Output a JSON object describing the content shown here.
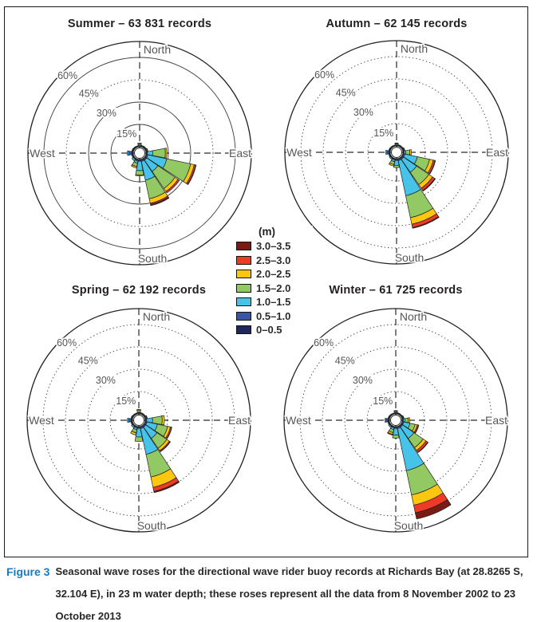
{
  "figure_panel": {
    "border_color": "#1a1a1a",
    "background": "#ffffff"
  },
  "legend": {
    "title": "(m)",
    "entries": [
      {
        "label": "3.0–3.5",
        "color": "#7a1a15"
      },
      {
        "label": "2.5–3.0",
        "color": "#ee3a26"
      },
      {
        "label": "2.0–2.5",
        "color": "#fdc70f"
      },
      {
        "label": "1.5–2.0",
        "color": "#93c963"
      },
      {
        "label": "1.0–1.5",
        "color": "#47c2e8"
      },
      {
        "label": "0.5–1.0",
        "color": "#3a55a5"
      },
      {
        "label": "0–0.5",
        "color": "#20265e"
      }
    ]
  },
  "chart_data": {
    "type": "wind-rose",
    "kind": "polar stacked directional histogram (seasonal wave roses)",
    "units": "percent of records per direction bin",
    "bin_width_deg": 22.5,
    "direction_bins": [
      "N",
      "NNE",
      "NE",
      "ENE",
      "E",
      "ESE",
      "SE",
      "SSE",
      "S",
      "SSW",
      "SW",
      "WSW",
      "W",
      "WNW",
      "NW",
      "NNW"
    ],
    "radial_ticks_pct": [
      15,
      30,
      45,
      60
    ],
    "radial_tick_suffix": "%",
    "compass_labels": {
      "n": "North",
      "e": "East",
      "s": "South",
      "w": "West"
    },
    "wave_height_classes_m": [
      "0–0.5",
      "0.5–1.0",
      "1.0–1.5",
      "1.5–2.0",
      "2.0–2.5",
      "2.5–3.0",
      "3.0–3.5"
    ],
    "class_colors": [
      "#20265e",
      "#3a55a5",
      "#47c2e8",
      "#93c963",
      "#fdc70f",
      "#ee3a26",
      "#7a1a15"
    ],
    "panels": [
      {
        "id": "summer",
        "title": "Summer – 63 831 records",
        "records": "63 831",
        "solid_rings": [
          15,
          30,
          60
        ],
        "petals_pct": {
          "N": [
            0.3,
            0.4,
            0.6,
            0.9,
            0.3,
            0,
            0
          ],
          "NNE": [
            0.3,
            0.3,
            0.5,
            0,
            0,
            0,
            0
          ],
          "NE": [
            0.3,
            0.3,
            0.5,
            0,
            0,
            0,
            0
          ],
          "ENE": [
            0.3,
            0.3,
            0.6,
            0.3,
            0,
            0,
            0
          ],
          "E": [
            0.3,
            0.7,
            3.5,
            8.5,
            1.0,
            0,
            0
          ],
          "ESE": [
            0.4,
            1.0,
            12.9,
            16.4,
            2.5,
            1.0,
            0.3
          ],
          "SE": [
            0.4,
            1.0,
            9.2,
            13.9,
            2.5,
            1.1,
            0
          ],
          "SSE": [
            0.4,
            1.0,
            12.9,
            12.8,
            3.1,
            0.8,
            0.8
          ],
          "S": [
            0.4,
            0.8,
            6.3,
            3.0,
            0.5,
            0,
            0
          ],
          "SSW": [
            0.4,
            0.8,
            1.4,
            2.4,
            1.0,
            0,
            0
          ],
          "SW": [
            0.3,
            0.5,
            1.2,
            0,
            0,
            0,
            0
          ],
          "WSW": [
            0.3,
            0.4,
            0.5,
            0,
            0,
            0,
            0
          ],
          "W": [
            1.0,
            2.0,
            1.0,
            0,
            0,
            0,
            0
          ],
          "WNW": [
            0.3,
            0.4,
            0.5,
            0,
            0,
            0,
            0
          ],
          "NW": [
            0.3,
            0.3,
            0.4,
            0,
            0,
            0,
            0
          ],
          "NNW": [
            0.2,
            0.3,
            0.3,
            0,
            0,
            0,
            0
          ]
        }
      },
      {
        "id": "autumn",
        "title": "Autumn – 62 145 records",
        "records": "62 145",
        "solid_rings": [],
        "petals_pct": {
          "N": [
            0.3,
            0.4,
            0.6,
            0.5,
            0.2,
            0,
            0
          ],
          "NNE": [
            0.2,
            0.3,
            0.4,
            0,
            0,
            0,
            0
          ],
          "NE": [
            0.2,
            0.3,
            0.4,
            0,
            0,
            0,
            0
          ],
          "ENE": [
            0.3,
            0.3,
            0.5,
            0.3,
            0,
            0,
            0
          ],
          "E": [
            0.3,
            0.5,
            1.2,
            2.7,
            1.0,
            0,
            0
          ],
          "ESE": [
            0.4,
            1.0,
            8.6,
            8.4,
            2.5,
            1.2,
            0.3
          ],
          "SE": [
            0.4,
            1.0,
            10.6,
            10.0,
            3.0,
            1.8,
            0.5
          ],
          "SSE": [
            0.4,
            1.0,
            24.1,
            15.1,
            4.5,
            2.3,
            0.5
          ],
          "S": [
            0.4,
            0.8,
            3.3,
            1.5,
            0,
            0,
            0
          ],
          "SSW": [
            0.3,
            0.7,
            1.2,
            2.0,
            1.0,
            0,
            0
          ],
          "SW": [
            0.3,
            0.4,
            0.8,
            0,
            0,
            0,
            0
          ],
          "WSW": [
            0.3,
            0.4,
            0.5,
            0,
            0,
            0,
            0
          ],
          "W": [
            0.8,
            1.4,
            0.8,
            0,
            0,
            0,
            0
          ],
          "WNW": [
            0.3,
            0.4,
            0.4,
            0,
            0,
            0,
            0
          ],
          "NW": [
            0.2,
            0.3,
            0.4,
            0,
            0,
            0,
            0
          ],
          "NNW": [
            0.2,
            0.2,
            0.3,
            0,
            0,
            0,
            0
          ]
        }
      },
      {
        "id": "spring",
        "title": "Spring – 62 192 records",
        "records": "62 192",
        "solid_rings": [],
        "petals_pct": {
          "N": [
            0.3,
            0.4,
            0.5,
            1.2,
            0.6,
            0,
            0
          ],
          "NNE": [
            0.2,
            0.3,
            0.5,
            0,
            0,
            0,
            0
          ],
          "NE": [
            0.2,
            0.3,
            0.5,
            0,
            0,
            0,
            0
          ],
          "ENE": [
            0.3,
            0.3,
            0.6,
            0.4,
            0,
            0,
            0
          ],
          "E": [
            0.3,
            0.7,
            4.0,
            6.4,
            1.5,
            0,
            0
          ],
          "ESE": [
            0.4,
            0.9,
            7.2,
            7.0,
            1.9,
            0.8,
            0.2
          ],
          "SE": [
            0.4,
            0.9,
            9.2,
            8.0,
            2.0,
            0.7,
            0.2
          ],
          "SSE": [
            0.4,
            1.0,
            17.7,
            15.6,
            7.1,
            2.8,
            0.8
          ],
          "S": [
            0.4,
            0.8,
            5.8,
            3.0,
            0,
            0,
            0
          ],
          "SSW": [
            0.3,
            0.7,
            1.2,
            2.2,
            1.5,
            0,
            0
          ],
          "SW": [
            0.3,
            0.5,
            1.0,
            0,
            0,
            0,
            0
          ],
          "WSW": [
            0.3,
            0.4,
            0.5,
            0,
            0,
            0,
            0
          ],
          "W": [
            0.9,
            1.6,
            0.9,
            0,
            0,
            0,
            0
          ],
          "WNW": [
            0.3,
            0.4,
            0.5,
            0,
            0,
            0,
            0
          ],
          "NW": [
            0.2,
            0.3,
            0.4,
            0,
            0,
            0,
            0
          ],
          "NNW": [
            0.2,
            0.3,
            0.3,
            0,
            0,
            0,
            0
          ]
        }
      },
      {
        "id": "winter",
        "title": "Winter – 61 725 records",
        "records": "61 725",
        "solid_rings": [],
        "petals_pct": {
          "N": [
            0.3,
            0.4,
            0.5,
            0.8,
            0.3,
            0,
            0
          ],
          "NNE": [
            0.2,
            0.3,
            0.4,
            0,
            0,
            0,
            0
          ],
          "NE": [
            0.2,
            0.3,
            0.4,
            0,
            0,
            0,
            0
          ],
          "ENE": [
            0.3,
            0.3,
            0.5,
            0.3,
            0,
            0,
            0
          ],
          "E": [
            0.3,
            0.5,
            1.3,
            2.0,
            1.0,
            0,
            0
          ],
          "ESE": [
            0.4,
            0.8,
            4.3,
            3.5,
            1.5,
            0.8,
            0.2
          ],
          "SE": [
            0.4,
            0.9,
            9.2,
            7.5,
            2.3,
            1.5,
            0.3
          ],
          "SSE": [
            0.4,
            1.0,
            28.9,
            16.7,
            7.0,
            5.3,
            4.2
          ],
          "S": [
            0.4,
            0.8,
            4.5,
            2.0,
            0,
            0,
            0
          ],
          "SSW": [
            0.3,
            0.7,
            1.2,
            2.0,
            1.2,
            0.6,
            0
          ],
          "SW": [
            0.3,
            0.5,
            0.8,
            0,
            0,
            0,
            0
          ],
          "WSW": [
            0.3,
            0.4,
            0.5,
            0,
            0,
            0,
            0
          ],
          "W": [
            0.8,
            1.4,
            0.8,
            0,
            0,
            0,
            0
          ],
          "WNW": [
            0.3,
            0.4,
            0.4,
            0,
            0,
            0,
            0
          ],
          "NW": [
            0.2,
            0.3,
            0.4,
            0,
            0,
            0,
            0
          ],
          "NNW": [
            0.2,
            0.2,
            0.3,
            0,
            0,
            0,
            0
          ]
        }
      }
    ]
  },
  "caption": {
    "label": "Figure 3",
    "label_color": "#1b79bd",
    "text": "Seasonal wave roses for the directional wave rider buoy records at Richards Bay (at 28.8265 S, 32.104 E), in 23 m water depth; these roses represent all the data from 8 November 2002 to 23 October 2013"
  }
}
